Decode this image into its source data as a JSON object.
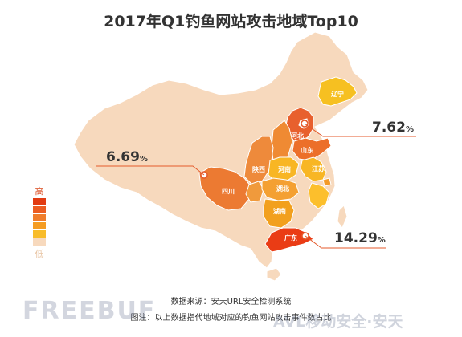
{
  "title": "2017年Q1钓鱼网站攻击地域Top10",
  "map": {
    "base_color": "#f7d9bd",
    "border_color": "#ffffff",
    "provinces": [
      {
        "name": "liaoning",
        "label": "辽宁",
        "color": "#f6c021"
      },
      {
        "name": "hebei",
        "label": "河北",
        "color": "#e8602d"
      },
      {
        "name": "shandong",
        "label": "山东",
        "color": "#ec6f2a"
      },
      {
        "name": "shaanxi",
        "label": "陕西",
        "color": "#ee8a3b"
      },
      {
        "name": "henan",
        "label": "河南",
        "color": "#f8b624"
      },
      {
        "name": "jiangsu",
        "label": "江苏",
        "color": "#f8b624"
      },
      {
        "name": "sichuan",
        "label": "四川",
        "color": "#ec7a32"
      },
      {
        "name": "hubei",
        "label": "湖北",
        "color": "#f4a032"
      },
      {
        "name": "hunan",
        "label": "湖南",
        "color": "#f2a01d"
      },
      {
        "name": "guangdong",
        "label": "广东",
        "color": "#ea3c15"
      }
    ],
    "unlabeled_highlight": [
      {
        "name": "beijing",
        "color": "#ffffff"
      },
      {
        "name": "shanxi",
        "color": "#ef8a33"
      },
      {
        "name": "shanghai",
        "color": "#f49a27"
      },
      {
        "name": "zhejiang",
        "color": "#fcbf2c"
      },
      {
        "name": "chongqing",
        "color": "#f09a3c"
      }
    ],
    "callouts": [
      {
        "name": "beijing-callout",
        "value": "7.62",
        "unit": "%"
      },
      {
        "name": "sichuan-callout",
        "value": "6.69",
        "unit": "%"
      },
      {
        "name": "guangdong-callout",
        "value": "14.29",
        "unit": "%"
      }
    ]
  },
  "legend": {
    "high_label": "高",
    "low_label": "低",
    "colors": [
      "#e23b12",
      "#ec5d22",
      "#f07d2c",
      "#f59c22",
      "#f8bc2a",
      "#f7d9bd"
    ]
  },
  "footer": {
    "source": "数据来源：安天URL安全检测系统",
    "caption": "图注：以上数据指代地域对应的钓鱼网站攻击事件数占比"
  },
  "watermarks": {
    "left": "FREEBUF",
    "right": "AVL移动安全·安天"
  }
}
